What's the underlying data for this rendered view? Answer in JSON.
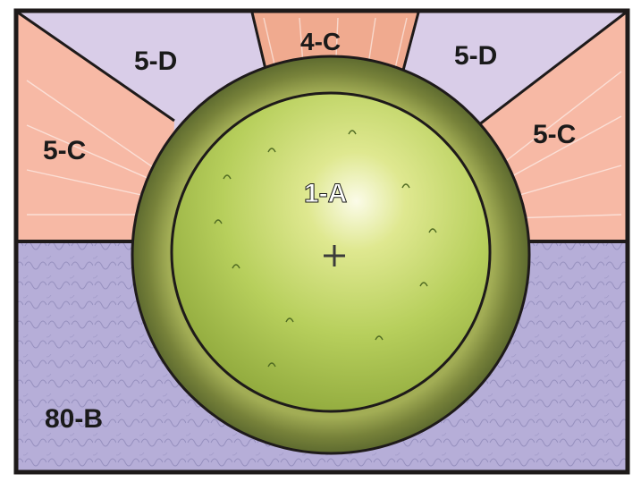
{
  "zones": {
    "upper_left_pink": {
      "label": "5-C"
    },
    "upper_left_lilac": {
      "label": "5-D"
    },
    "top_center": {
      "label": "4-C"
    },
    "upper_right_lilac": {
      "label": "5-D"
    },
    "upper_right_pink": {
      "label": "5-C"
    },
    "center_circle": {
      "label": "1-A"
    },
    "lower_left_ground": {
      "label": "80-B"
    }
  },
  "colors": {
    "pink_zone": "#f6b7a3",
    "lilac_zone": "#d7c9e6",
    "ground_zone": "#b4abd6",
    "lawn": "#b9cf60",
    "planting_ring": "#7f8b3a",
    "outline": "#1e1a1a"
  }
}
